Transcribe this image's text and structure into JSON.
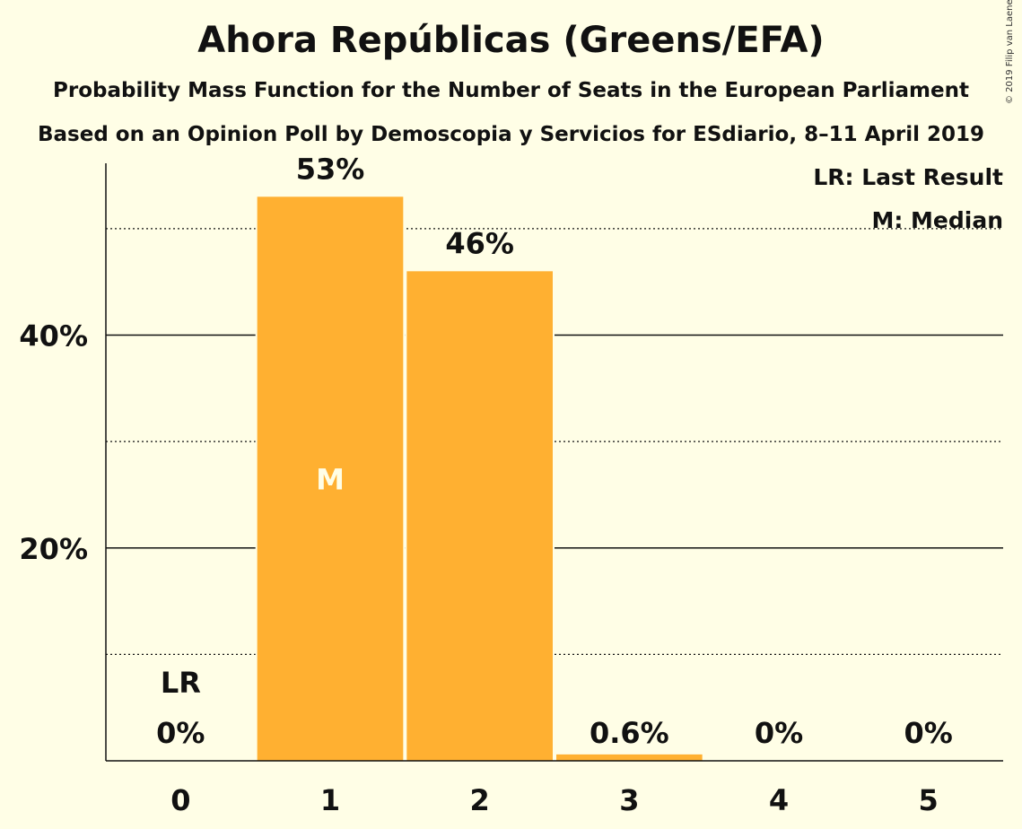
{
  "title": "Ahora Repúblicas (Greens/EFA)",
  "subtitle1": "Probability Mass Function for the Number of Seats in the European Parliament",
  "subtitle2": "Based on an Opinion Poll by Demoscopia y Servicios for ESdiario, 8–11 April 2019",
  "copyright": "© 2019 Filip van Laenen",
  "legend": {
    "last_result": "LR: Last Result",
    "median": "M: Median"
  },
  "colors": {
    "bar": "#FFB031",
    "background": "#FFFEE6",
    "text": "#111111"
  },
  "chart_data": {
    "type": "bar",
    "categories": [
      "0",
      "1",
      "2",
      "3",
      "4",
      "5"
    ],
    "values": [
      0,
      53,
      46,
      0.6,
      0,
      0
    ],
    "value_labels": [
      "0%",
      "53%",
      "46%",
      "0.6%",
      "0%",
      "0%"
    ],
    "ylim": [
      0,
      58
    ],
    "yticks_major": [
      20,
      40
    ],
    "ytick_labels": [
      "20%",
      "40%"
    ],
    "yticks_minor": [
      10,
      30,
      50
    ],
    "last_result_index": 0,
    "last_result_label": "LR",
    "median_index": 1,
    "median_label": "M"
  }
}
